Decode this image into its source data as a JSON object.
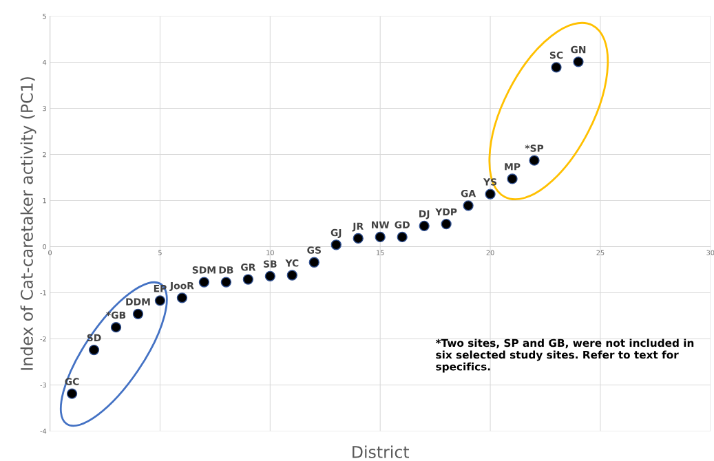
{
  "chart_data": {
    "type": "scatter",
    "xlabel": "District",
    "ylabel": "Index of Cat-caretaker activity (PC1)",
    "x": [
      1,
      2,
      3,
      4,
      5,
      6,
      7,
      8,
      9,
      10,
      11,
      12,
      13,
      14,
      15,
      16,
      17,
      18,
      19,
      20,
      21,
      22,
      23,
      24
    ],
    "series": [
      {
        "color": "#000000",
        "values": [
          -3.19,
          -2.24,
          -1.75,
          -1.46,
          -1.17,
          -1.11,
          -0.77,
          -0.77,
          -0.71,
          -0.64,
          -0.62,
          -0.34,
          0.04,
          0.18,
          0.21,
          0.21,
          0.45,
          0.49,
          0.89,
          1.14,
          1.47,
          1.87,
          3.89,
          4.01
        ]
      }
    ],
    "value_labels": [
      "GC",
      "SD",
      "*GB",
      "DDM",
      "EP",
      "JooR",
      "SDM",
      "DB",
      "GR",
      "SB",
      "YC",
      "GS",
      "GJ",
      "JR",
      "NW",
      "GD",
      "DJ",
      "YDP",
      "GA",
      "YS",
      "MP",
      "*SP",
      "SC",
      "GN"
    ],
    "annotations": [
      "*Two sites, SP and GB, were not included in six selected study sites. Refer to text for specifics."
    ],
    "xlim": [
      0,
      30
    ],
    "xticks": [
      0,
      5,
      10,
      15,
      20,
      25,
      30
    ],
    "ylim": [
      -4,
      5
    ],
    "yticks": [
      -4,
      -3,
      -2,
      -1,
      0,
      1,
      2,
      3,
      4,
      5
    ],
    "grid": true,
    "marker": "circle"
  }
}
